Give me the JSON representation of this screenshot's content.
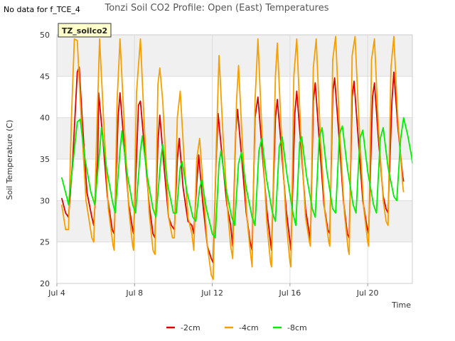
{
  "note": "No data for f_TCE_4",
  "chart_data": {
    "type": "line",
    "title": "Tonzi Soil CO2 Profile: Open (East) Temperatures",
    "xlabel": "Time",
    "ylabel": "Soil Temperature (C)",
    "badge": "TZ_soilco2",
    "ylim": [
      20,
      50
    ],
    "yticks": [
      20,
      25,
      30,
      35,
      40,
      45,
      50
    ],
    "xlim": [
      "2023-07-04",
      "2023-07-22"
    ],
    "xticks": [
      {
        "label": "Jul 4",
        "day": 4
      },
      {
        "label": "Jul 8",
        "day": 8
      },
      {
        "label": "Jul 12",
        "day": 12
      },
      {
        "label": "Jul 16",
        "day": 16
      },
      {
        "label": "Jul 20",
        "day": 20
      }
    ],
    "grid": true,
    "legend_position": "bottom",
    "series": [
      {
        "name": "-2cm",
        "color": "#dd0000",
        "points": [
          [
            4.25,
            30.3
          ],
          [
            4.45,
            28.5
          ],
          [
            4.6,
            28.0
          ],
          [
            4.82,
            35.0
          ],
          [
            5.05,
            45.5
          ],
          [
            5.15,
            46.1
          ],
          [
            5.3,
            40.0
          ],
          [
            5.55,
            31.0
          ],
          [
            5.8,
            28.0
          ],
          [
            5.9,
            27.0
          ],
          [
            6.1,
            35.0
          ],
          [
            6.15,
            43.0
          ],
          [
            6.35,
            38.0
          ],
          [
            6.6,
            30.5
          ],
          [
            6.85,
            26.5
          ],
          [
            6.95,
            26.0
          ],
          [
            7.15,
            40.0
          ],
          [
            7.25,
            43.0
          ],
          [
            7.45,
            37.0
          ],
          [
            7.7,
            29.5
          ],
          [
            7.9,
            26.5
          ],
          [
            7.95,
            26.0
          ],
          [
            8.2,
            41.5
          ],
          [
            8.3,
            42.0
          ],
          [
            8.5,
            36.5
          ],
          [
            8.75,
            29.5
          ],
          [
            8.95,
            26.0
          ],
          [
            9.05,
            25.5
          ],
          [
            9.2,
            37.0
          ],
          [
            9.3,
            40.3
          ],
          [
            9.5,
            34.5
          ],
          [
            9.75,
            28.0
          ],
          [
            9.9,
            27.0
          ],
          [
            10.05,
            26.5
          ],
          [
            10.2,
            35.0
          ],
          [
            10.3,
            37.5
          ],
          [
            10.5,
            31.5
          ],
          [
            10.75,
            27.5
          ],
          [
            10.95,
            27.0
          ],
          [
            11.05,
            26.0
          ],
          [
            11.2,
            32.0
          ],
          [
            11.3,
            35.5
          ],
          [
            11.5,
            30.0
          ],
          [
            11.75,
            24.5
          ],
          [
            11.95,
            23.0
          ],
          [
            12.05,
            22.5
          ],
          [
            12.2,
            35.0
          ],
          [
            12.3,
            40.5
          ],
          [
            12.5,
            35.5
          ],
          [
            12.75,
            29.5
          ],
          [
            12.95,
            27.0
          ],
          [
            13.05,
            24.5
          ],
          [
            13.2,
            38.0
          ],
          [
            13.3,
            41.0
          ],
          [
            13.5,
            35.5
          ],
          [
            13.75,
            28.5
          ],
          [
            13.95,
            25.0
          ],
          [
            14.05,
            24.0
          ],
          [
            14.2,
            40.0
          ],
          [
            14.35,
            42.5
          ],
          [
            14.55,
            36.5
          ],
          [
            14.8,
            29.0
          ],
          [
            15.0,
            25.0
          ],
          [
            15.05,
            24.0
          ],
          [
            15.25,
            40.0
          ],
          [
            15.35,
            42.2
          ],
          [
            15.55,
            36.5
          ],
          [
            15.8,
            29.0
          ],
          [
            16.0,
            25.0
          ],
          [
            16.05,
            24.0
          ],
          [
            16.25,
            40.5
          ],
          [
            16.35,
            43.2
          ],
          [
            16.55,
            37.0
          ],
          [
            16.8,
            29.0
          ],
          [
            17.0,
            26.0
          ],
          [
            17.05,
            25.0
          ],
          [
            17.2,
            42.0
          ],
          [
            17.3,
            44.2
          ],
          [
            17.5,
            37.5
          ],
          [
            17.75,
            29.5
          ],
          [
            17.95,
            26.5
          ],
          [
            18.05,
            26.0
          ],
          [
            18.2,
            43.0
          ],
          [
            18.3,
            44.8
          ],
          [
            18.5,
            38.5
          ],
          [
            18.75,
            30.0
          ],
          [
            18.95,
            26.0
          ],
          [
            19.05,
            25.5
          ],
          [
            19.2,
            42.5
          ],
          [
            19.3,
            44.4
          ],
          [
            19.5,
            38.0
          ],
          [
            19.75,
            30.0
          ],
          [
            19.95,
            27.0
          ],
          [
            20.05,
            26.0
          ],
          [
            20.25,
            42.5
          ],
          [
            20.35,
            44.2
          ],
          [
            20.55,
            37.5
          ],
          [
            20.8,
            30.5
          ],
          [
            20.95,
            29.0
          ],
          [
            21.05,
            28.5
          ],
          [
            21.25,
            42.0
          ],
          [
            21.35,
            45.5
          ],
          [
            21.55,
            39.0
          ],
          [
            21.8,
            33.0
          ],
          [
            21.85,
            32.3
          ]
        ]
      },
      {
        "name": "-4cm",
        "color": "#f5a000",
        "points": [
          [
            4.25,
            29.5
          ],
          [
            4.45,
            26.5
          ],
          [
            4.6,
            26.5
          ],
          [
            4.75,
            40.0
          ],
          [
            4.9,
            49.5
          ],
          [
            5.05,
            49.3
          ],
          [
            5.25,
            40.0
          ],
          [
            5.5,
            30.0
          ],
          [
            5.8,
            25.5
          ],
          [
            5.9,
            25.0
          ],
          [
            6.05,
            38.0
          ],
          [
            6.2,
            49.5
          ],
          [
            6.4,
            40.0
          ],
          [
            6.65,
            29.0
          ],
          [
            6.9,
            24.5
          ],
          [
            6.95,
            24.0
          ],
          [
            7.1,
            42.0
          ],
          [
            7.25,
            49.5
          ],
          [
            7.45,
            40.0
          ],
          [
            7.7,
            29.0
          ],
          [
            7.9,
            24.5
          ],
          [
            7.95,
            24.0
          ],
          [
            8.1,
            43.0
          ],
          [
            8.3,
            49.5
          ],
          [
            8.5,
            39.0
          ],
          [
            8.75,
            28.5
          ],
          [
            8.95,
            24.0
          ],
          [
            9.05,
            23.5
          ],
          [
            9.2,
            44.0
          ],
          [
            9.3,
            46.0
          ],
          [
            9.45,
            42.0
          ],
          [
            9.55,
            37.5
          ],
          [
            9.75,
            28.0
          ],
          [
            9.95,
            25.5
          ],
          [
            10.05,
            25.5
          ],
          [
            10.2,
            40.0
          ],
          [
            10.35,
            43.2
          ],
          [
            10.55,
            35.0
          ],
          [
            10.75,
            28.0
          ],
          [
            10.95,
            26.0
          ],
          [
            11.05,
            24.0
          ],
          [
            11.2,
            35.0
          ],
          [
            11.35,
            37.5
          ],
          [
            11.55,
            31.0
          ],
          [
            11.75,
            24.5
          ],
          [
            11.95,
            21.0
          ],
          [
            12.05,
            20.5
          ],
          [
            12.2,
            36.0
          ],
          [
            12.35,
            47.5
          ],
          [
            12.55,
            38.0
          ],
          [
            12.8,
            28.5
          ],
          [
            12.95,
            24.5
          ],
          [
            13.05,
            23.0
          ],
          [
            13.25,
            42.0
          ],
          [
            13.35,
            46.3
          ],
          [
            13.55,
            37.0
          ],
          [
            13.8,
            27.5
          ],
          [
            13.95,
            24.0
          ],
          [
            14.05,
            22.0
          ],
          [
            14.2,
            42.0
          ],
          [
            14.35,
            49.5
          ],
          [
            14.55,
            38.5
          ],
          [
            14.8,
            27.5
          ],
          [
            15.0,
            22.5
          ],
          [
            15.05,
            22.0
          ],
          [
            15.25,
            45.0
          ],
          [
            15.35,
            49.0
          ],
          [
            15.55,
            38.5
          ],
          [
            15.8,
            27.5
          ],
          [
            16.0,
            22.5
          ],
          [
            16.05,
            22.0
          ],
          [
            16.2,
            45.0
          ],
          [
            16.35,
            49.5
          ],
          [
            16.55,
            38.5
          ],
          [
            16.8,
            28.0
          ],
          [
            17.0,
            25.0
          ],
          [
            17.05,
            24.5
          ],
          [
            17.2,
            46.0
          ],
          [
            17.35,
            49.5
          ],
          [
            17.55,
            38.5
          ],
          [
            17.8,
            28.5
          ],
          [
            18.0,
            25.0
          ],
          [
            18.05,
            24.5
          ],
          [
            18.2,
            47.0
          ],
          [
            18.35,
            49.8
          ],
          [
            18.55,
            39.0
          ],
          [
            18.8,
            28.5
          ],
          [
            19.0,
            24.0
          ],
          [
            19.05,
            23.5
          ],
          [
            19.2,
            47.5
          ],
          [
            19.35,
            49.8
          ],
          [
            19.55,
            39.5
          ],
          [
            19.8,
            29.0
          ],
          [
            20.0,
            25.0
          ],
          [
            20.05,
            24.5
          ],
          [
            20.2,
            47.0
          ],
          [
            20.35,
            49.5
          ],
          [
            20.55,
            39.0
          ],
          [
            20.8,
            30.0
          ],
          [
            20.95,
            27.5
          ],
          [
            21.05,
            27.0
          ],
          [
            21.2,
            46.0
          ],
          [
            21.35,
            49.8
          ],
          [
            21.55,
            40.0
          ],
          [
            21.8,
            32.0
          ],
          [
            21.85,
            31.0
          ]
        ]
      },
      {
        "name": "-8cm",
        "color": "#00ee00",
        "points": [
          [
            4.25,
            32.8
          ],
          [
            4.5,
            30.5
          ],
          [
            4.6,
            29.5
          ],
          [
            4.85,
            35.0
          ],
          [
            5.05,
            39.5
          ],
          [
            5.2,
            39.8
          ],
          [
            5.45,
            35.0
          ],
          [
            5.75,
            31.0
          ],
          [
            5.95,
            29.5
          ],
          [
            6.2,
            36.0
          ],
          [
            6.3,
            38.8
          ],
          [
            6.55,
            34.0
          ],
          [
            6.85,
            30.0
          ],
          [
            7.0,
            28.5
          ],
          [
            7.25,
            36.0
          ],
          [
            7.35,
            38.4
          ],
          [
            7.6,
            33.5
          ],
          [
            7.9,
            29.5
          ],
          [
            8.05,
            28.5
          ],
          [
            8.3,
            36.0
          ],
          [
            8.4,
            37.8
          ],
          [
            8.65,
            33.0
          ],
          [
            8.95,
            29.0
          ],
          [
            9.1,
            28.0
          ],
          [
            9.35,
            35.0
          ],
          [
            9.45,
            36.8
          ],
          [
            9.7,
            32.0
          ],
          [
            10.0,
            28.5
          ],
          [
            10.15,
            28.5
          ],
          [
            10.35,
            34.0
          ],
          [
            10.45,
            34.7
          ],
          [
            10.7,
            31.0
          ],
          [
            11.0,
            28.0
          ],
          [
            11.15,
            27.5
          ],
          [
            11.35,
            31.5
          ],
          [
            11.45,
            32.5
          ],
          [
            11.7,
            29.0
          ],
          [
            12.0,
            26.0
          ],
          [
            12.15,
            25.5
          ],
          [
            12.35,
            34.5
          ],
          [
            12.45,
            36.0
          ],
          [
            12.7,
            31.5
          ],
          [
            13.0,
            28.0
          ],
          [
            13.15,
            27.0
          ],
          [
            13.35,
            34.5
          ],
          [
            13.5,
            35.8
          ],
          [
            13.75,
            31.5
          ],
          [
            14.05,
            28.0
          ],
          [
            14.2,
            27.0
          ],
          [
            14.4,
            36.0
          ],
          [
            14.55,
            37.5
          ],
          [
            14.8,
            32.5
          ],
          [
            15.1,
            28.5
          ],
          [
            15.25,
            27.5
          ],
          [
            15.45,
            36.5
          ],
          [
            15.6,
            37.7
          ],
          [
            15.85,
            33.0
          ],
          [
            16.15,
            28.5
          ],
          [
            16.3,
            27.0
          ],
          [
            16.5,
            37.0
          ],
          [
            16.6,
            37.7
          ],
          [
            16.85,
            33.0
          ],
          [
            17.15,
            29.0
          ],
          [
            17.3,
            28.0
          ],
          [
            17.5,
            37.5
          ],
          [
            17.65,
            38.8
          ],
          [
            17.9,
            33.5
          ],
          [
            18.2,
            29.0
          ],
          [
            18.35,
            28.5
          ],
          [
            18.55,
            38.0
          ],
          [
            18.7,
            39.0
          ],
          [
            18.95,
            34.0
          ],
          [
            19.25,
            29.5
          ],
          [
            19.4,
            28.5
          ],
          [
            19.6,
            37.5
          ],
          [
            19.75,
            38.5
          ],
          [
            20.0,
            33.5
          ],
          [
            20.3,
            29.5
          ],
          [
            20.45,
            28.5
          ],
          [
            20.65,
            37.5
          ],
          [
            20.8,
            38.8
          ],
          [
            21.05,
            34.0
          ],
          [
            21.35,
            30.5
          ],
          [
            21.5,
            30.0
          ],
          [
            21.7,
            37.5
          ],
          [
            21.85,
            40.0
          ],
          [
            22.05,
            38.0
          ],
          [
            22.25,
            35.5
          ],
          [
            22.3,
            34.5
          ]
        ]
      }
    ]
  }
}
